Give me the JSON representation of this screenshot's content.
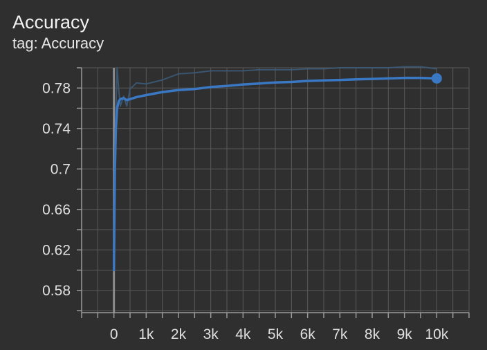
{
  "header": {
    "title": "Accuracy",
    "subtitle": "tag: Accuracy"
  },
  "colors": {
    "background": "#2f2f2f",
    "grid": "#5a5a5a",
    "axis": "#9a9a9a",
    "zero_line": "#8c8c8c",
    "smoothed_line": "#3a78c3",
    "raw_line": "#3c5a78"
  },
  "chart_data": {
    "type": "line",
    "title": "Accuracy",
    "subtitle": "tag: Accuracy",
    "xlabel": "",
    "ylabel": "",
    "xlim": [
      -1000,
      11000
    ],
    "ylim": [
      0.558,
      0.8
    ],
    "x_ticks": [
      0,
      1000,
      2000,
      3000,
      4000,
      5000,
      6000,
      7000,
      8000,
      9000,
      10000
    ],
    "x_tick_labels": [
      "0",
      "1k",
      "2k",
      "3k",
      "4k",
      "5k",
      "6k",
      "7k",
      "8k",
      "9k",
      "10k"
    ],
    "y_ticks": [
      0.58,
      0.62,
      0.66,
      0.7,
      0.74,
      0.78
    ],
    "y_tick_labels": [
      "0.58",
      "0.62",
      "0.66",
      "0.7",
      "0.74",
      "0.78"
    ],
    "grid": true,
    "legend": "none",
    "series": [
      {
        "role": "raw",
        "x": [
          0,
          50,
          100,
          150,
          200,
          300,
          400,
          500,
          700,
          1000,
          1500,
          2000,
          2500,
          3000,
          3500,
          4000,
          4500,
          5000,
          5500,
          6000,
          6500,
          7000,
          7500,
          8000,
          8500,
          9000,
          9500,
          10000
        ],
        "y": [
          0.6,
          0.745,
          0.8,
          0.778,
          0.762,
          0.772,
          0.762,
          0.779,
          0.785,
          0.784,
          0.788,
          0.794,
          0.795,
          0.797,
          0.797,
          0.797,
          0.798,
          0.798,
          0.798,
          0.799,
          0.799,
          0.8,
          0.8,
          0.8,
          0.8,
          0.801,
          0.801,
          0.799
        ]
      },
      {
        "role": "smoothed",
        "x": [
          0,
          30,
          60,
          100,
          150,
          200,
          300,
          400,
          500,
          700,
          1000,
          1500,
          2000,
          2500,
          3000,
          3500,
          4000,
          4500,
          5000,
          5500,
          6000,
          6500,
          7000,
          7500,
          8000,
          8500,
          9000,
          9500,
          10000
        ],
        "y": [
          0.6,
          0.7,
          0.74,
          0.76,
          0.767,
          0.769,
          0.77,
          0.768,
          0.769,
          0.771,
          0.773,
          0.776,
          0.778,
          0.779,
          0.781,
          0.782,
          0.7835,
          0.7845,
          0.7855,
          0.786,
          0.787,
          0.7875,
          0.788,
          0.7885,
          0.789,
          0.7895,
          0.79,
          0.79,
          0.7895
        ]
      }
    ],
    "last_point": {
      "x": 10000,
      "y": 0.7895
    }
  }
}
